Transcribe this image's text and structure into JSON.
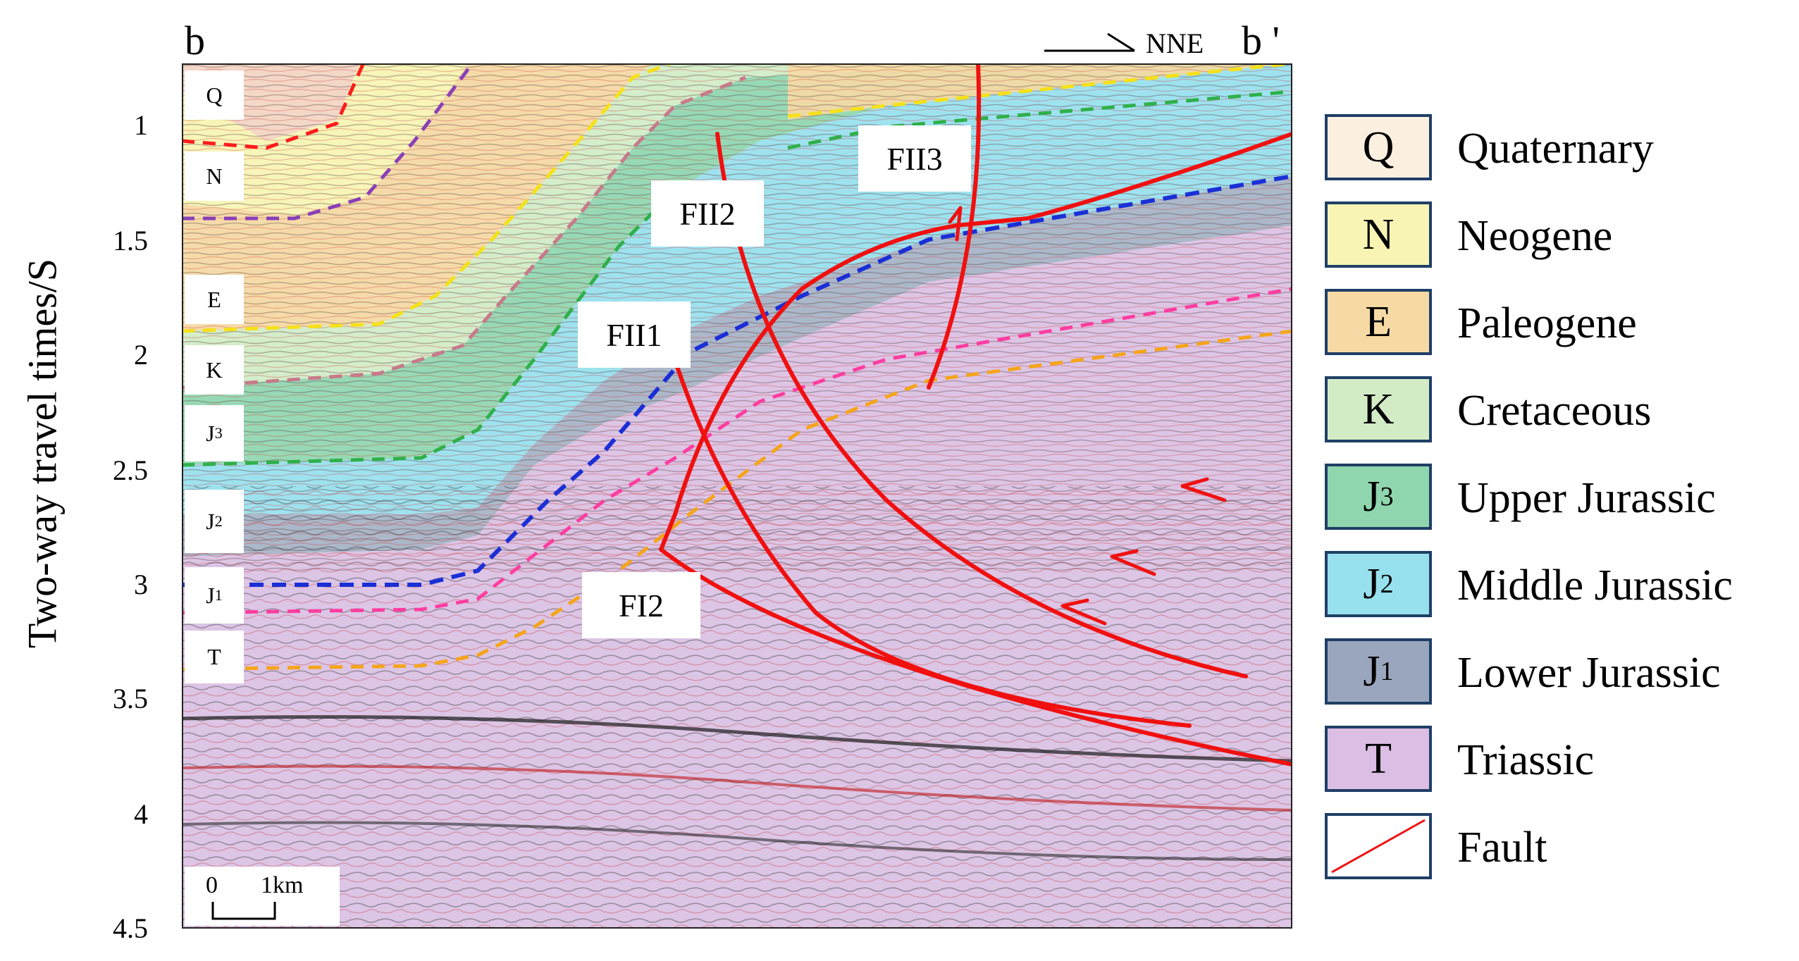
{
  "section": {
    "start_label": "b",
    "end_label": "b '",
    "direction": "NNE",
    "y_axis_label": "Two-way travel times/S",
    "y_ticks": [
      "1",
      "1.5",
      "2",
      "2.5",
      "3",
      "3.5",
      "4",
      "4.5"
    ],
    "scale_bar": {
      "zero": "0",
      "length": "1km"
    }
  },
  "strata_labels": [
    {
      "letter": "Q",
      "sub": ""
    },
    {
      "letter": "N",
      "sub": ""
    },
    {
      "letter": "E",
      "sub": ""
    },
    {
      "letter": "K",
      "sub": ""
    },
    {
      "letter": "J",
      "sub": "3"
    },
    {
      "letter": "J",
      "sub": "2"
    },
    {
      "letter": "J",
      "sub": "1"
    },
    {
      "letter": "T",
      "sub": ""
    }
  ],
  "faults": [
    "FII1",
    "FII2",
    "FII3",
    "FI2"
  ],
  "legend": [
    {
      "symbol": "Q",
      "sub": "",
      "label": "Quaternary",
      "color": "#fbefdf"
    },
    {
      "symbol": "N",
      "sub": "",
      "label": "Neogene",
      "color": "#f8f4b4"
    },
    {
      "symbol": "E",
      "sub": "",
      "label": "Paleogene",
      "color": "#f6d9a4"
    },
    {
      "symbol": "K",
      "sub": "",
      "label": "Cretaceous",
      "color": "#d3ecc6"
    },
    {
      "symbol": "J",
      "sub": "3",
      "label": "Upper Jurassic",
      "color": "#8fd6ae"
    },
    {
      "symbol": "J",
      "sub": "2",
      "label": "Middle Jurassic",
      "color": "#97e0ee"
    },
    {
      "symbol": "J",
      "sub": "1",
      "label": "Lower Jurassic",
      "color": "#9aa6bd"
    },
    {
      "symbol": "T",
      "sub": "",
      "label": "Triassic",
      "color": "#dcbde3"
    },
    {
      "symbol": "",
      "sub": "",
      "label": "Fault",
      "color": "#ffffff"
    }
  ],
  "colors": {
    "fault": "#f01010",
    "legend_border": "#1f3f66",
    "horizon_q": "#ff1a1a",
    "horizon_n": "#8a3fb8",
    "horizon_e": "#f5e11a",
    "horizon_k": "#c77a8a",
    "horizon_j3": "#2fb04a",
    "horizon_j2": "#1a2fd6",
    "horizon_j1": "#ff3da0",
    "horizon_t": "#f5a51a"
  }
}
